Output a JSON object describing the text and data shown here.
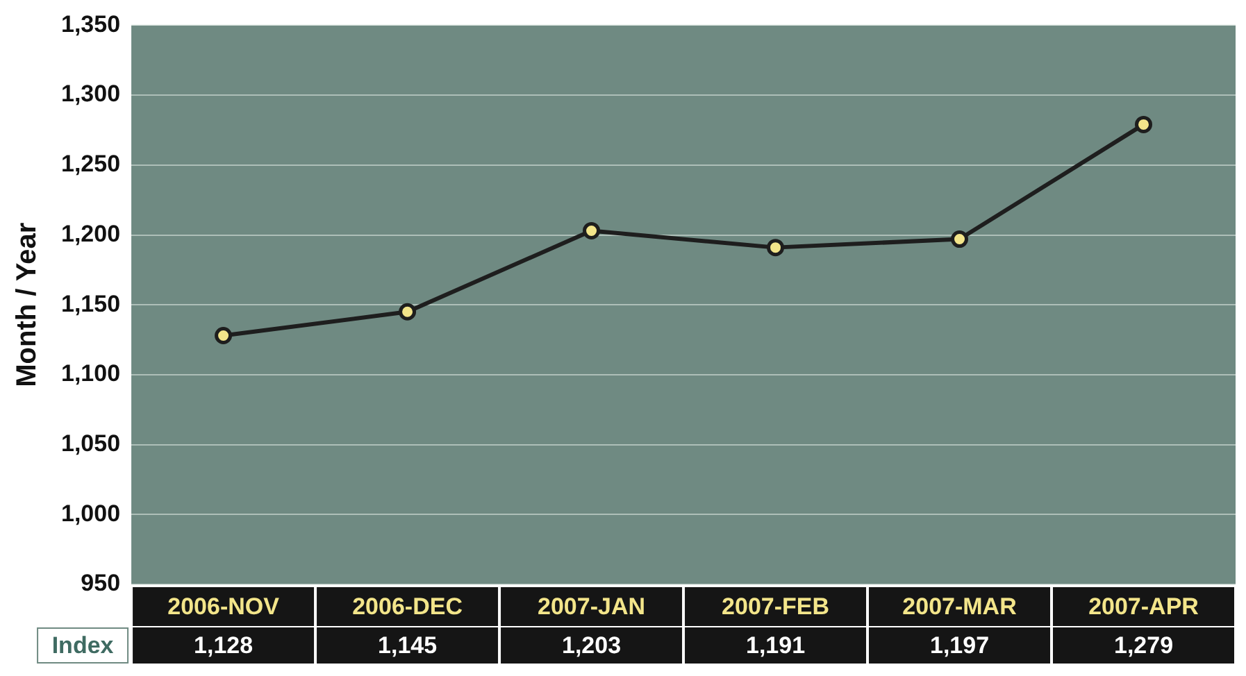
{
  "chart_data": {
    "type": "line",
    "ylabel": "Month / Year",
    "categories": [
      "2006-NOV",
      "2006-DEC",
      "2007-JAN",
      "2007-FEB",
      "2007-MAR",
      "2007-APR"
    ],
    "series": [
      {
        "name": "Index",
        "color": "#1e1e1e",
        "values": [
          1128,
          1145,
          1203,
          1191,
          1197,
          1279
        ],
        "value_labels": [
          "1,128",
          "1,145",
          "1,203",
          "1,191",
          "1,197",
          "1,279"
        ]
      }
    ],
    "ylim": [
      950,
      1350
    ],
    "yticks": [
      950,
      {
        "value": 1000,
        "label": "1,000"
      },
      {
        "value": 1050,
        "label": "1,050"
      },
      {
        "value": 1100,
        "label": "1,100"
      },
      {
        "value": 1150,
        "label": "1,150"
      },
      {
        "value": 1200,
        "label": "1,200"
      },
      {
        "value": 1250,
        "label": "1,250"
      },
      {
        "value": 1300,
        "label": "1,300"
      },
      {
        "value": 1350,
        "label": "1,350"
      }
    ],
    "grid": "y",
    "marker": "circle",
    "line_style": "solid",
    "legend": false
  }
}
